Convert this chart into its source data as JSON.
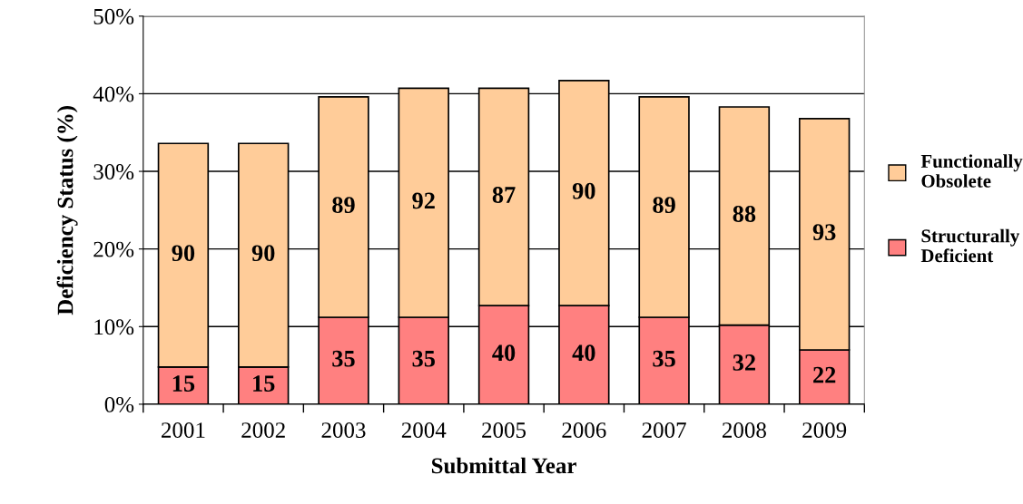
{
  "chart_data": {
    "type": "bar",
    "stacked": true,
    "xlabel": "Submittal Year",
    "ylabel": "Deficiency Status (%)",
    "categories": [
      "2001",
      "2002",
      "2003",
      "2004",
      "2005",
      "2006",
      "2007",
      "2008",
      "2009"
    ],
    "series": [
      {
        "name": "Structurally Deficient",
        "color": "#ff8080",
        "values": [
          4.8,
          4.8,
          11.2,
          11.2,
          12.7,
          12.7,
          11.2,
          10.2,
          7.0
        ]
      },
      {
        "name": "Functionally Obsolete",
        "color": "#ffcc99",
        "values": [
          28.8,
          28.8,
          28.4,
          29.5,
          28.0,
          29.0,
          28.4,
          28.1,
          29.8
        ]
      }
    ],
    "annotations": [
      "15",
      "15",
      "35",
      "35",
      "40",
      "40",
      "35",
      "32",
      "22",
      "90",
      "90",
      "89",
      "92",
      "87",
      "90",
      "89",
      "88",
      "93"
    ],
    "ylim": [
      0,
      50
    ],
    "yticks": [
      {
        "value": 0,
        "label": "0%"
      },
      {
        "value": 10,
        "label": "10%"
      },
      {
        "value": 20,
        "label": "20%"
      },
      {
        "value": 30,
        "label": "30%"
      },
      {
        "value": 40,
        "label": "40%"
      },
      {
        "value": 50,
        "label": "50%"
      }
    ],
    "grid": "y",
    "legend": "right"
  }
}
